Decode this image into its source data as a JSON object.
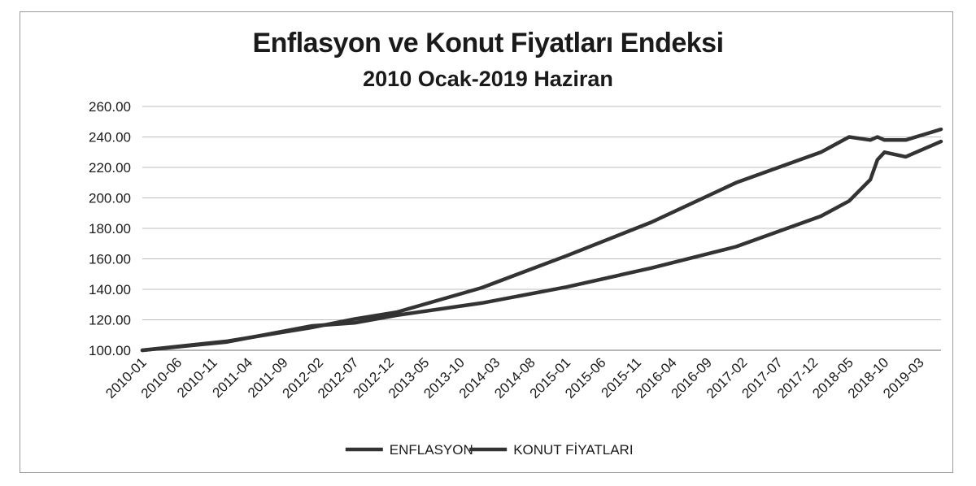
{
  "chart_data": {
    "type": "line",
    "title": "Enflasyon ve Konut Fiyatları Endeksi",
    "subtitle": "2010 Ocak-2019 Haziran",
    "xlabel": "",
    "ylabel": "",
    "ylim": [
      100,
      260
    ],
    "ytick_step": 20,
    "ytick_labels": [
      "100.00",
      "120.00",
      "140.00",
      "160.00",
      "180.00",
      "200.00",
      "220.00",
      "240.00",
      "260.00"
    ],
    "xtick_labels": [
      "2010-01",
      "2010-06",
      "2010-11",
      "2011-04",
      "2011-09",
      "2012-02",
      "2012-07",
      "2012-12",
      "2013-05",
      "2013-10",
      "2014-03",
      "2014-08",
      "2015-01",
      "2015-06",
      "2015-11",
      "2016-04",
      "2016-09",
      "2017-02",
      "2017-07",
      "2017-12",
      "2018-05",
      "2018-10",
      "2019-03"
    ],
    "grid": true,
    "legend_position": "bottom",
    "colors": {
      "line": "#333333",
      "grid": "#bdbdbd",
      "axis": "#333333"
    },
    "x_anchor_dates": [
      "2010-01",
      "2011-01",
      "2012-01",
      "2012-07",
      "2013-01",
      "2014-01",
      "2015-01",
      "2016-01",
      "2017-01",
      "2018-01",
      "2018-05",
      "2018-08",
      "2018-09",
      "2018-10",
      "2019-01",
      "2019-06"
    ],
    "series": [
      {
        "name": "ENFLASYON",
        "values": [
          100.0,
          105.5,
          116.0,
          118.0,
          123.0,
          131.0,
          141.5,
          154.0,
          168.0,
          188.0,
          198.0,
          212.0,
          225.0,
          230.0,
          227.0,
          237.0
        ]
      },
      {
        "name": "KONUT FİYATLARI",
        "values": [
          100.0,
          106.0,
          115.0,
          120.5,
          125.0,
          141.0,
          162.0,
          184.0,
          210.0,
          230.0,
          240.0,
          238.0,
          240.0,
          238.0,
          238.0,
          245.0
        ]
      }
    ]
  }
}
